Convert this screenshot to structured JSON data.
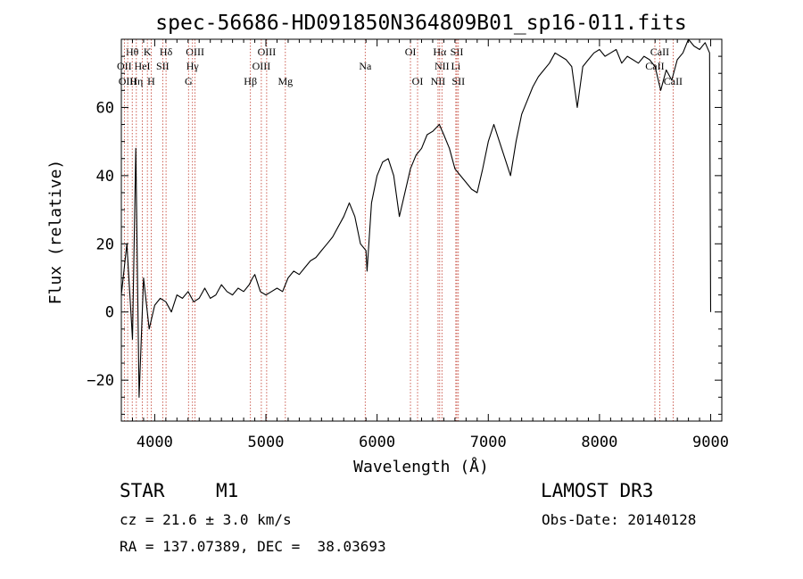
{
  "chart_data": {
    "type": "line",
    "title": "spec-56686-HD091850N364809B01_sp16-011.fits",
    "xlabel": "Wavelength (Å)",
    "ylabel": "Flux (relative)",
    "xlim": [
      3700,
      9100
    ],
    "ylim": [
      -32,
      80
    ],
    "xticks": [
      4000,
      5000,
      6000,
      7000,
      8000,
      9000
    ],
    "yticks": [
      -20,
      0,
      20,
      40,
      60
    ],
    "series": [
      {
        "name": "flux",
        "x": [
          3700,
          3750,
          3800,
          3830,
          3860,
          3900,
          3950,
          4000,
          4050,
          4100,
          4150,
          4200,
          4250,
          4300,
          4350,
          4400,
          4450,
          4500,
          4550,
          4600,
          4650,
          4700,
          4750,
          4800,
          4850,
          4880,
          4900,
          4950,
          5000,
          5050,
          5100,
          5150,
          5200,
          5250,
          5300,
          5350,
          5400,
          5450,
          5500,
          5550,
          5600,
          5650,
          5700,
          5750,
          5800,
          5850,
          5900,
          5910,
          5950,
          6000,
          6050,
          6100,
          6150,
          6200,
          6250,
          6300,
          6350,
          6400,
          6450,
          6500,
          6560,
          6600,
          6650,
          6700,
          6750,
          6800,
          6850,
          6900,
          6950,
          7000,
          7050,
          7100,
          7150,
          7200,
          7250,
          7300,
          7350,
          7400,
          7450,
          7500,
          7550,
          7600,
          7650,
          7700,
          7750,
          7800,
          7850,
          7900,
          7950,
          8000,
          8050,
          8100,
          8150,
          8200,
          8250,
          8300,
          8350,
          8400,
          8450,
          8500,
          8550,
          8600,
          8650,
          8700,
          8750,
          8800,
          8850,
          8900,
          8950,
          8990,
          9000
        ],
        "y": [
          5,
          20,
          -8,
          48,
          -25,
          10,
          -5,
          2,
          4,
          3,
          0,
          5,
          4,
          6,
          3,
          4,
          7,
          4,
          5,
          8,
          6,
          5,
          7,
          6,
          8,
          10,
          11,
          6,
          5,
          6,
          7,
          6,
          10,
          12,
          11,
          13,
          15,
          16,
          18,
          20,
          22,
          25,
          28,
          32,
          28,
          20,
          18,
          12,
          32,
          40,
          44,
          45,
          40,
          28,
          35,
          42,
          46,
          48,
          52,
          53,
          55,
          52,
          48,
          42,
          40,
          38,
          36,
          35,
          42,
          50,
          55,
          50,
          45,
          40,
          50,
          58,
          62,
          66,
          69,
          71,
          73,
          76,
          75,
          74,
          72,
          60,
          72,
          74,
          76,
          77,
          75,
          76,
          77,
          73,
          75,
          74,
          73,
          75,
          74,
          72,
          65,
          71,
          68,
          74,
          76,
          80,
          78,
          77,
          79,
          76,
          0
        ]
      }
    ],
    "line_markers": [
      {
        "label": "Hθ",
        "x": 3798,
        "row": 1
      },
      {
        "label": "K",
        "x": 3934,
        "row": 1
      },
      {
        "label": "Hδ",
        "x": 4102,
        "row": 1
      },
      {
        "label": "OIII",
        "x": 4363,
        "row": 1
      },
      {
        "label": "OIII",
        "x": 5007,
        "row": 1
      },
      {
        "label": "OI",
        "x": 6300,
        "row": 1
      },
      {
        "label": "Hα",
        "x": 6563,
        "row": 1
      },
      {
        "label": "SII",
        "x": 6717,
        "row": 1
      },
      {
        "label": "CaII",
        "x": 8542,
        "row": 1
      },
      {
        "label": "OII",
        "x": 3727,
        "row": 2
      },
      {
        "label": "HeI",
        "x": 3889,
        "row": 2
      },
      {
        "label": "SII",
        "x": 4072,
        "row": 2
      },
      {
        "label": "Hγ",
        "x": 4340,
        "row": 2
      },
      {
        "label": "OIII",
        "x": 4959,
        "row": 2
      },
      {
        "label": "Na",
        "x": 5893,
        "row": 2
      },
      {
        "label": "NII",
        "x": 6583,
        "row": 2
      },
      {
        "label": "Li",
        "x": 6708,
        "row": 2
      },
      {
        "label": "CaII",
        "x": 8498,
        "row": 2
      },
      {
        "label": "OIII",
        "x": 3757,
        "row": 3
      },
      {
        "label": "Hη",
        "x": 3835,
        "row": 3
      },
      {
        "label": "H",
        "x": 3968,
        "row": 3
      },
      {
        "label": "G",
        "x": 4304,
        "row": 3
      },
      {
        "label": "Hβ",
        "x": 4861,
        "row": 3
      },
      {
        "label": "Mg",
        "x": 5175,
        "row": 3
      },
      {
        "label": "OI",
        "x": 6364,
        "row": 3
      },
      {
        "label": "NII",
        "x": 6548,
        "row": 3
      },
      {
        "label": "SII",
        "x": 6731,
        "row": 3
      },
      {
        "label": "CaII",
        "x": 8662,
        "row": 3
      }
    ]
  },
  "info": {
    "class_label": "STAR",
    "subclass": "M1",
    "survey": "LAMOST DR3",
    "redshift": "cz = 21.6 ± 3.0 km/s",
    "obs_date": "Obs-Date: 20140128",
    "coords": "RA = 137.07389, DEC =  38.03693"
  },
  "colors": {
    "marker_line": "#c0392b",
    "axis": "#000000",
    "spectrum": "#000000"
  }
}
